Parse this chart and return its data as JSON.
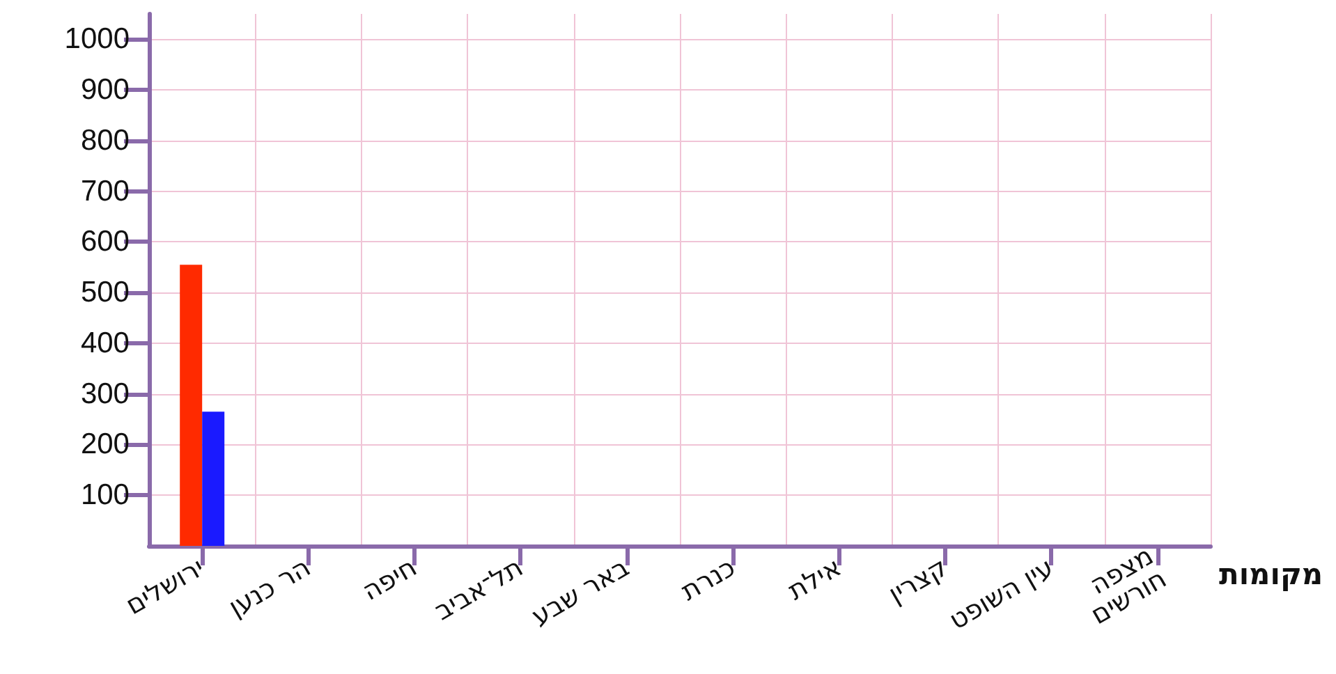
{
  "chart_data": {
    "type": "bar",
    "xlabel": "מקומות",
    "categories": [
      "ירושלים",
      "הר כנען",
      "חיפה",
      "תל־אביב",
      "באר שבע",
      "כנרת",
      "אילת",
      "קצרין",
      "עין השופט",
      "מצפה חורשים"
    ],
    "series": [
      {
        "color": "#ff2a00",
        "values": [
          555,
          null,
          null,
          null,
          null,
          null,
          null,
          null,
          null,
          null
        ]
      },
      {
        "color": "#1a1aff",
        "values": [
          265,
          null,
          null,
          null,
          null,
          null,
          null,
          null,
          null,
          null
        ]
      }
    ],
    "ylim": [
      0,
      1050
    ],
    "yticks": [
      100,
      200,
      300,
      400,
      500,
      600,
      700,
      800,
      900,
      1000
    ],
    "grid": true
  }
}
